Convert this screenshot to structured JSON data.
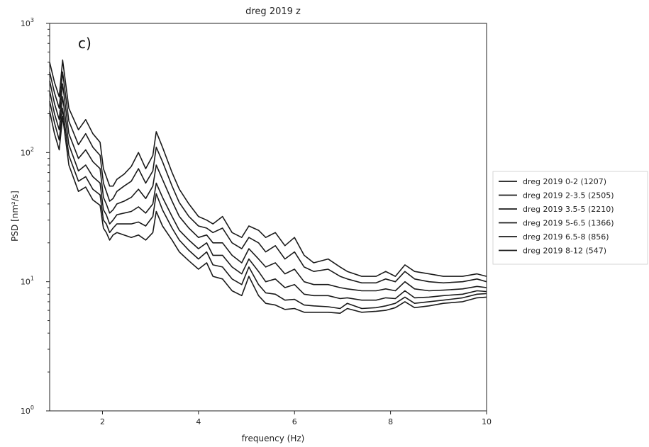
{
  "chart_data": {
    "type": "line",
    "title": "dreg 2019 z",
    "panel_label": "c)",
    "xlabel": "frequency (Hz)",
    "ylabel": "PSD  [nm²/s]",
    "xlim": [
      0.9,
      10
    ],
    "ylim": [
      1,
      1000
    ],
    "yscale": "log",
    "x_ticks": [
      2,
      4,
      6,
      8,
      10
    ],
    "y_ticks": [
      {
        "value": 1,
        "base": "10",
        "exp": "0"
      },
      {
        "value": 10,
        "base": "10",
        "exp": "1"
      },
      {
        "value": 100,
        "base": "10",
        "exp": "2"
      },
      {
        "value": 1000,
        "base": "10",
        "exp": "3"
      }
    ],
    "grid": false,
    "legend_position": "right, outside plot",
    "series": [
      {
        "name": "dreg 2019 0-2 (1207)",
        "points": [
          [
            0.9,
            500
          ],
          [
            1.0,
            350
          ],
          [
            1.1,
            270
          ],
          [
            1.17,
            520
          ],
          [
            1.3,
            220
          ],
          [
            1.5,
            150
          ],
          [
            1.65,
            180
          ],
          [
            1.8,
            140
          ],
          [
            1.95,
            120
          ],
          [
            2.02,
            75
          ],
          [
            2.08,
            65
          ],
          [
            2.15,
            55
          ],
          [
            2.22,
            55
          ],
          [
            2.3,
            62
          ],
          [
            2.45,
            68
          ],
          [
            2.6,
            78
          ],
          [
            2.75,
            100
          ],
          [
            2.9,
            75
          ],
          [
            3.05,
            95
          ],
          [
            3.12,
            145
          ],
          [
            3.25,
            110
          ],
          [
            3.45,
            70
          ],
          [
            3.6,
            52
          ],
          [
            3.8,
            40
          ],
          [
            4.0,
            32
          ],
          [
            4.17,
            30
          ],
          [
            4.3,
            28
          ],
          [
            4.5,
            32
          ],
          [
            4.7,
            24
          ],
          [
            4.9,
            22
          ],
          [
            5.05,
            27
          ],
          [
            5.25,
            25
          ],
          [
            5.4,
            22
          ],
          [
            5.6,
            24
          ],
          [
            5.8,
            19
          ],
          [
            6.0,
            22
          ],
          [
            6.2,
            16
          ],
          [
            6.4,
            14
          ],
          [
            6.7,
            15
          ],
          [
            6.95,
            13
          ],
          [
            7.1,
            12
          ],
          [
            7.4,
            11
          ],
          [
            7.7,
            11
          ],
          [
            7.9,
            12
          ],
          [
            8.1,
            11
          ],
          [
            8.3,
            13.5
          ],
          [
            8.5,
            12
          ],
          [
            8.8,
            11.5
          ],
          [
            9.1,
            11
          ],
          [
            9.5,
            11
          ],
          [
            9.8,
            11.5
          ],
          [
            10.0,
            11
          ]
        ]
      },
      {
        "name": "dreg 2019 2-3.5 (2505)",
        "points": [
          [
            0.9,
            420
          ],
          [
            1.0,
            290
          ],
          [
            1.1,
            220
          ],
          [
            1.17,
            420
          ],
          [
            1.3,
            175
          ],
          [
            1.5,
            115
          ],
          [
            1.65,
            140
          ],
          [
            1.8,
            110
          ],
          [
            1.95,
            95
          ],
          [
            2.02,
            58
          ],
          [
            2.08,
            50
          ],
          [
            2.15,
            42
          ],
          [
            2.22,
            44
          ],
          [
            2.3,
            50
          ],
          [
            2.45,
            55
          ],
          [
            2.6,
            60
          ],
          [
            2.75,
            75
          ],
          [
            2.9,
            58
          ],
          [
            3.05,
            72
          ],
          [
            3.12,
            110
          ],
          [
            3.25,
            85
          ],
          [
            3.45,
            55
          ],
          [
            3.6,
            41
          ],
          [
            3.8,
            32
          ],
          [
            4.0,
            27
          ],
          [
            4.17,
            26
          ],
          [
            4.3,
            24
          ],
          [
            4.5,
            26
          ],
          [
            4.7,
            20
          ],
          [
            4.9,
            18
          ],
          [
            5.05,
            22
          ],
          [
            5.25,
            20
          ],
          [
            5.4,
            17
          ],
          [
            5.6,
            19
          ],
          [
            5.8,
            15
          ],
          [
            6.0,
            17
          ],
          [
            6.2,
            13
          ],
          [
            6.4,
            12
          ],
          [
            6.7,
            12.5
          ],
          [
            6.95,
            11
          ],
          [
            7.1,
            10.5
          ],
          [
            7.4,
            9.8
          ],
          [
            7.7,
            9.8
          ],
          [
            7.9,
            10.5
          ],
          [
            8.1,
            10
          ],
          [
            8.3,
            12
          ],
          [
            8.5,
            10.5
          ],
          [
            8.8,
            10
          ],
          [
            9.1,
            9.8
          ],
          [
            9.5,
            10
          ],
          [
            9.8,
            10.5
          ],
          [
            10.0,
            10
          ]
        ]
      },
      {
        "name": "dreg 2019 3.5-5 (2210)",
        "points": [
          [
            0.9,
            360
          ],
          [
            1.0,
            240
          ],
          [
            1.1,
            180
          ],
          [
            1.17,
            340
          ],
          [
            1.3,
            140
          ],
          [
            1.5,
            90
          ],
          [
            1.65,
            105
          ],
          [
            1.8,
            85
          ],
          [
            1.95,
            75
          ],
          [
            2.02,
            45
          ],
          [
            2.08,
            40
          ],
          [
            2.15,
            34
          ],
          [
            2.22,
            36
          ],
          [
            2.3,
            40
          ],
          [
            2.45,
            42
          ],
          [
            2.6,
            45
          ],
          [
            2.75,
            52
          ],
          [
            2.9,
            44
          ],
          [
            3.05,
            55
          ],
          [
            3.12,
            80
          ],
          [
            3.25,
            62
          ],
          [
            3.45,
            42
          ],
          [
            3.6,
            32
          ],
          [
            3.8,
            26
          ],
          [
            4.0,
            22
          ],
          [
            4.17,
            23
          ],
          [
            4.3,
            20
          ],
          [
            4.5,
            20
          ],
          [
            4.7,
            16
          ],
          [
            4.9,
            14
          ],
          [
            5.05,
            18
          ],
          [
            5.25,
            15
          ],
          [
            5.4,
            13
          ],
          [
            5.6,
            14
          ],
          [
            5.8,
            11.5
          ],
          [
            6.0,
            12.5
          ],
          [
            6.2,
            10
          ],
          [
            6.4,
            9.5
          ],
          [
            6.7,
            9.5
          ],
          [
            6.95,
            9
          ],
          [
            7.1,
            8.8
          ],
          [
            7.4,
            8.5
          ],
          [
            7.7,
            8.5
          ],
          [
            7.9,
            8.8
          ],
          [
            8.1,
            8.5
          ],
          [
            8.3,
            10
          ],
          [
            8.5,
            8.8
          ],
          [
            8.8,
            8.5
          ],
          [
            9.1,
            8.6
          ],
          [
            9.5,
            8.8
          ],
          [
            9.8,
            9.2
          ],
          [
            10.0,
            9
          ]
        ]
      },
      {
        "name": "dreg 2019 5-6.5 (1366)",
        "points": [
          [
            0.9,
            300
          ],
          [
            1.0,
            200
          ],
          [
            1.1,
            150
          ],
          [
            1.17,
            270
          ],
          [
            1.3,
            115
          ],
          [
            1.5,
            72
          ],
          [
            1.65,
            80
          ],
          [
            1.8,
            65
          ],
          [
            1.95,
            58
          ],
          [
            2.02,
            36
          ],
          [
            2.08,
            33
          ],
          [
            2.15,
            28
          ],
          [
            2.22,
            30
          ],
          [
            2.3,
            33
          ],
          [
            2.45,
            34
          ],
          [
            2.6,
            35
          ],
          [
            2.75,
            38
          ],
          [
            2.9,
            34
          ],
          [
            3.05,
            40
          ],
          [
            3.12,
            58
          ],
          [
            3.25,
            45
          ],
          [
            3.45,
            32
          ],
          [
            3.6,
            25
          ],
          [
            3.8,
            21
          ],
          [
            4.0,
            18
          ],
          [
            4.17,
            20
          ],
          [
            4.3,
            16
          ],
          [
            4.5,
            16
          ],
          [
            4.7,
            13
          ],
          [
            4.9,
            11.5
          ],
          [
            5.05,
            15
          ],
          [
            5.25,
            12
          ],
          [
            5.4,
            10
          ],
          [
            5.6,
            10.5
          ],
          [
            5.8,
            9
          ],
          [
            6.0,
            9.5
          ],
          [
            6.2,
            8
          ],
          [
            6.4,
            7.8
          ],
          [
            6.7,
            7.8
          ],
          [
            6.95,
            7.4
          ],
          [
            7.1,
            7.5
          ],
          [
            7.4,
            7.2
          ],
          [
            7.7,
            7.2
          ],
          [
            7.9,
            7.5
          ],
          [
            8.1,
            7.4
          ],
          [
            8.3,
            8.5
          ],
          [
            8.5,
            7.5
          ],
          [
            8.8,
            7.6
          ],
          [
            9.1,
            7.8
          ],
          [
            9.5,
            8
          ],
          [
            9.8,
            8.5
          ],
          [
            10.0,
            8.4
          ]
        ]
      },
      {
        "name": "dreg 2019 6.5-8 (856)",
        "points": [
          [
            0.9,
            250
          ],
          [
            1.0,
            170
          ],
          [
            1.1,
            125
          ],
          [
            1.17,
            220
          ],
          [
            1.3,
            95
          ],
          [
            1.5,
            60
          ],
          [
            1.65,
            65
          ],
          [
            1.8,
            52
          ],
          [
            1.95,
            47
          ],
          [
            2.02,
            30
          ],
          [
            2.08,
            28
          ],
          [
            2.15,
            24
          ],
          [
            2.22,
            26
          ],
          [
            2.3,
            28
          ],
          [
            2.45,
            28
          ],
          [
            2.6,
            28
          ],
          [
            2.75,
            29
          ],
          [
            2.9,
            27
          ],
          [
            3.05,
            32
          ],
          [
            3.12,
            48
          ],
          [
            3.25,
            36
          ],
          [
            3.45,
            26
          ],
          [
            3.6,
            21
          ],
          [
            3.8,
            17.5
          ],
          [
            4.0,
            15
          ],
          [
            4.17,
            17
          ],
          [
            4.3,
            13.5
          ],
          [
            4.5,
            13
          ],
          [
            4.7,
            10.5
          ],
          [
            4.9,
            9.5
          ],
          [
            5.05,
            13
          ],
          [
            5.25,
            9.5
          ],
          [
            5.4,
            8.2
          ],
          [
            5.6,
            8
          ],
          [
            5.8,
            7.2
          ],
          [
            6.0,
            7.3
          ],
          [
            6.2,
            6.6
          ],
          [
            6.4,
            6.5
          ],
          [
            6.7,
            6.4
          ],
          [
            6.95,
            6.2
          ],
          [
            7.1,
            6.8
          ],
          [
            7.4,
            6.2
          ],
          [
            7.7,
            6.3
          ],
          [
            7.9,
            6.5
          ],
          [
            8.1,
            6.8
          ],
          [
            8.3,
            7.6
          ],
          [
            8.5,
            6.8
          ],
          [
            8.8,
            7.0
          ],
          [
            9.1,
            7.2
          ],
          [
            9.5,
            7.5
          ],
          [
            9.8,
            8
          ],
          [
            10.0,
            8.1
          ]
        ]
      },
      {
        "name": "dreg 2019 8-12 (547)",
        "points": [
          [
            0.9,
            210
          ],
          [
            1.0,
            140
          ],
          [
            1.1,
            105
          ],
          [
            1.17,
            190
          ],
          [
            1.3,
            80
          ],
          [
            1.5,
            50
          ],
          [
            1.65,
            54
          ],
          [
            1.8,
            43
          ],
          [
            1.95,
            39
          ],
          [
            2.02,
            26
          ],
          [
            2.08,
            24
          ],
          [
            2.15,
            21
          ],
          [
            2.22,
            23
          ],
          [
            2.3,
            24
          ],
          [
            2.45,
            23
          ],
          [
            2.6,
            22
          ],
          [
            2.75,
            23
          ],
          [
            2.9,
            21
          ],
          [
            3.05,
            24
          ],
          [
            3.12,
            35
          ],
          [
            3.25,
            27
          ],
          [
            3.45,
            21
          ],
          [
            3.6,
            17
          ],
          [
            3.8,
            14.5
          ],
          [
            4.0,
            12.5
          ],
          [
            4.17,
            14
          ],
          [
            4.3,
            11
          ],
          [
            4.5,
            10.5
          ],
          [
            4.7,
            8.5
          ],
          [
            4.9,
            7.8
          ],
          [
            5.05,
            11
          ],
          [
            5.25,
            7.8
          ],
          [
            5.4,
            6.8
          ],
          [
            5.6,
            6.6
          ],
          [
            5.8,
            6.1
          ],
          [
            6.0,
            6.2
          ],
          [
            6.2,
            5.8
          ],
          [
            6.4,
            5.8
          ],
          [
            6.7,
            5.8
          ],
          [
            6.95,
            5.7
          ],
          [
            7.1,
            6.2
          ],
          [
            7.4,
            5.8
          ],
          [
            7.7,
            5.9
          ],
          [
            7.9,
            6.0
          ],
          [
            8.1,
            6.3
          ],
          [
            8.3,
            7.0
          ],
          [
            8.5,
            6.3
          ],
          [
            8.8,
            6.5
          ],
          [
            9.1,
            6.8
          ],
          [
            9.5,
            7.0
          ],
          [
            9.8,
            7.5
          ],
          [
            10.0,
            7.6
          ]
        ]
      }
    ]
  },
  "colors": {
    "line": "#1a1a1a",
    "axes": "#222222",
    "background": "#ffffff"
  }
}
